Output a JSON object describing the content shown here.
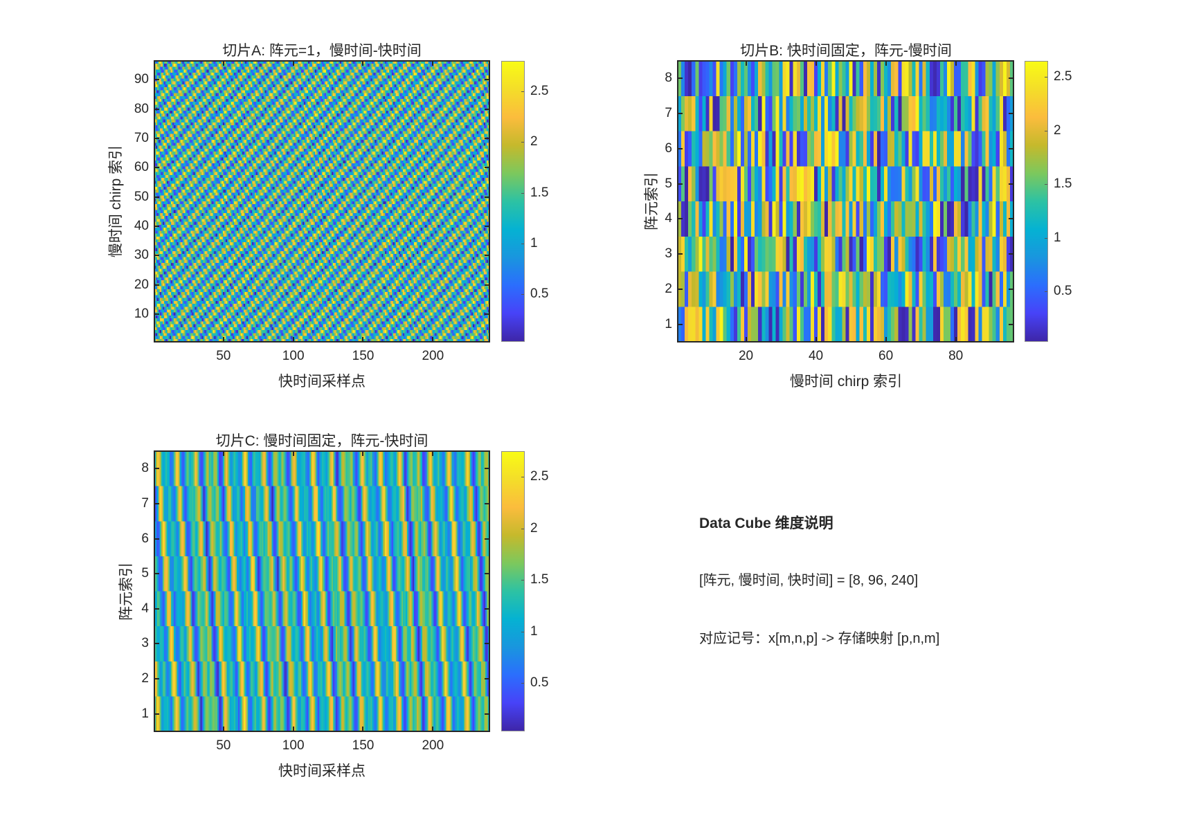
{
  "chart_data": [
    {
      "type": "heatmap",
      "id": "A",
      "title": "切片A: 阵元=1，慢时间-快时间",
      "xlabel": "快时间采样点",
      "ylabel": "慢时间 chirp 索引",
      "xlim": [
        0.5,
        240.5
      ],
      "ylim": [
        0.5,
        96.5
      ],
      "x_ticks": [
        50,
        100,
        150,
        200
      ],
      "y_ticks": [
        10,
        20,
        30,
        40,
        50,
        60,
        70,
        80,
        90
      ],
      "grid_size": {
        "cols": 240,
        "rows": 96
      },
      "colorbar": {
        "range": [
          0.03,
          2.8
        ],
        "ticks": [
          0.5,
          1,
          1.5,
          2,
          2.5
        ],
        "tick_labels": [
          "0.5",
          "1",
          "1.5",
          "2",
          "2.5"
        ]
      },
      "colormap": "parula",
      "pattern": "diagonal checkered stripes, values 0-2.8"
    },
    {
      "type": "heatmap",
      "id": "B",
      "title": "切片B: 快时间固定，阵元-慢时间",
      "xlabel": "慢时间 chirp 索引",
      "ylabel": "阵元索引",
      "xlim": [
        0.5,
        96.5
      ],
      "ylim": [
        0.5,
        8.5
      ],
      "x_ticks": [
        20,
        40,
        60,
        80
      ],
      "y_ticks": [
        1,
        2,
        3,
        4,
        5,
        6,
        7,
        8
      ],
      "grid_size": {
        "cols": 96,
        "rows": 8
      },
      "colorbar": {
        "range": [
          0.03,
          2.65
        ],
        "ticks": [
          0.5,
          1,
          1.5,
          2,
          2.5
        ],
        "tick_labels": [
          "0.5",
          "1",
          "1.5",
          "2",
          "2.5"
        ]
      },
      "colormap": "parula",
      "pattern": "vertical bands per row, random values 0-2.65"
    },
    {
      "type": "heatmap",
      "id": "C",
      "title": "切片C: 慢时间固定，阵元-快时间",
      "xlabel": "快时间采样点",
      "ylabel": "阵元索引",
      "xlim": [
        0.5,
        240.5
      ],
      "ylim": [
        0.5,
        8.5
      ],
      "x_ticks": [
        50,
        100,
        150,
        200
      ],
      "y_ticks": [
        1,
        2,
        3,
        4,
        5,
        6,
        7,
        8
      ],
      "grid_size": {
        "cols": 240,
        "rows": 8
      },
      "colorbar": {
        "range": [
          0.03,
          2.75
        ],
        "ticks": [
          0.5,
          1,
          1.5,
          2,
          2.5
        ],
        "tick_labels": [
          "0.5",
          "1",
          "1.5",
          "2",
          "2.5"
        ]
      },
      "colormap": "parula",
      "pattern": "periodic vertical stripes shifting per row, values 0-2.75"
    }
  ],
  "plots": {
    "A": {
      "title": "切片A: 阵元=1，慢时间-快时间",
      "xlabel": "快时间采样点",
      "ylabel": "慢时间 chirp 索引",
      "xticks": [
        "50",
        "100",
        "150",
        "200"
      ],
      "yticks": [
        "10",
        "20",
        "30",
        "40",
        "50",
        "60",
        "70",
        "80",
        "90"
      ],
      "cbticks": [
        "0.5",
        "1",
        "1.5",
        "2",
        "2.5"
      ]
    },
    "B": {
      "title": "切片B: 快时间固定，阵元-慢时间",
      "xlabel": "慢时间 chirp 索引",
      "ylabel": "阵元索引",
      "xticks": [
        "20",
        "40",
        "60",
        "80"
      ],
      "yticks": [
        "1",
        "2",
        "3",
        "4",
        "5",
        "6",
        "7",
        "8"
      ],
      "cbticks": [
        "0.5",
        "1",
        "1.5",
        "2",
        "2.5"
      ]
    },
    "C": {
      "title": "切片C: 慢时间固定，阵元-快时间",
      "xlabel": "快时间采样点",
      "ylabel": "阵元索引",
      "xticks": [
        "50",
        "100",
        "150",
        "200"
      ],
      "yticks": [
        "1",
        "2",
        "3",
        "4",
        "5",
        "6",
        "7",
        "8"
      ],
      "cbticks": [
        "0.5",
        "1",
        "1.5",
        "2",
        "2.5"
      ]
    }
  },
  "note": {
    "heading": "Data Cube 维度说明",
    "line1": "[阵元, 慢时间, 快时间] = [8, 96, 240]",
    "line2": "对应记号：x[m,n,p] -> 存储映射 [p,n,m]"
  }
}
